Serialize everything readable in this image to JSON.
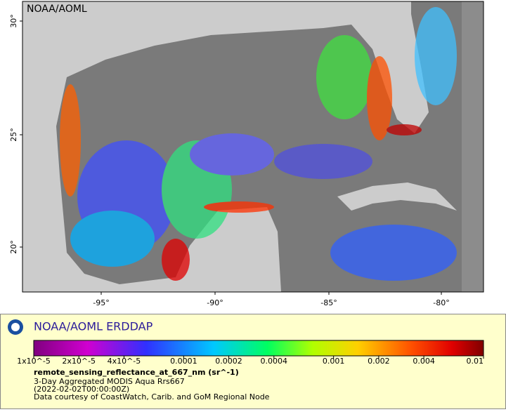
{
  "map": {
    "corner_label": "NOAA/AOML",
    "lat_labels": [
      "30°",
      "25°",
      "20°"
    ],
    "lon_labels": [
      "-95°",
      "-90°",
      "-85°",
      "-80°"
    ]
  },
  "legend": {
    "title": "NOAA/AOML ERDDAP",
    "colorbar_labels": [
      "1x10^-5",
      "2x10^-5",
      "4x10^-5",
      "0.0001",
      "0.0002",
      "0.0004",
      "0.001",
      "0.002",
      "0.004",
      "0.01"
    ],
    "variable": "remote_sensing_reflectance_at_667_nm (sr^-1)",
    "lines": [
      "3-Day Aggregated MODIS Aqua Rrs667",
      "(2022-02-02T00:00:00Z)",
      "Data courtesy of CoastWatch, Carib. and GoM Regional Node"
    ]
  }
}
